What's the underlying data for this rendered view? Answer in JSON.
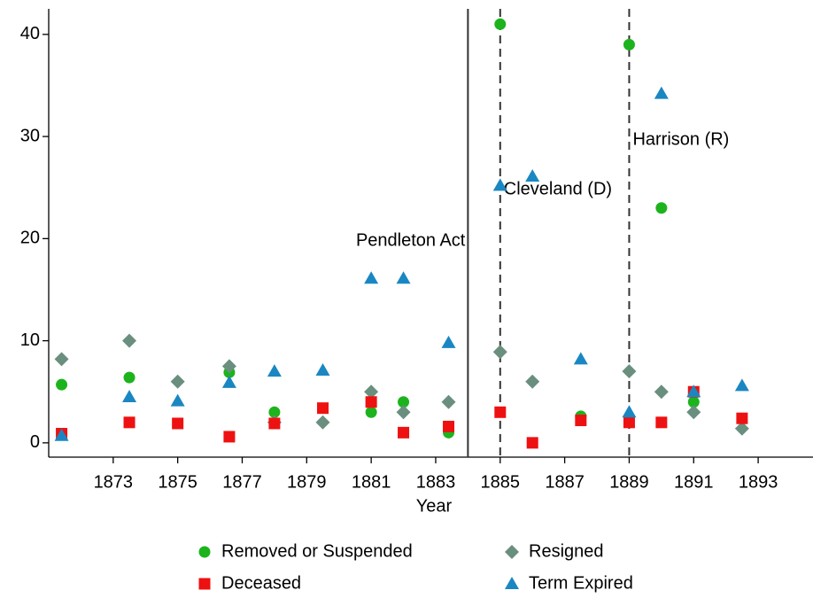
{
  "chart_data": {
    "type": "scatter",
    "x_label": "Year",
    "xlim": [
      1871,
      1894.7
    ],
    "ylim": [
      -1.4,
      42.5
    ],
    "xticks": [
      1873,
      1875,
      1877,
      1879,
      1881,
      1883,
      1885,
      1887,
      1889,
      1891,
      1893
    ],
    "yticks": [
      0,
      10,
      20,
      30,
      40
    ],
    "series": [
      {
        "name": "Removed or Suspended",
        "color": "#1db31d",
        "marker": "circle",
        "x": [
          1871.4,
          1873.5,
          1876.6,
          1878,
          1881,
          1882,
          1883.4,
          1885,
          1887.5,
          1889,
          1890,
          1891
        ],
        "values": [
          5.7,
          6.4,
          6.9,
          3,
          3,
          4,
          1,
          41,
          2.6,
          39,
          23,
          4
        ]
      },
      {
        "name": "Resigned",
        "color": "#6a8f7f",
        "marker": "diamond",
        "x": [
          1871.4,
          1873.5,
          1875,
          1876.6,
          1878,
          1879.5,
          1881,
          1882,
          1883.4,
          1885,
          1886,
          1889,
          1890,
          1891,
          1892.5
        ],
        "values": [
          8.2,
          10,
          6,
          7.5,
          2,
          2,
          5,
          3,
          4,
          8.9,
          6,
          7,
          5,
          3,
          1.4
        ]
      },
      {
        "name": "Deceased",
        "color": "#ee1111",
        "marker": "square",
        "x": [
          1871.4,
          1873.5,
          1875,
          1876.6,
          1878,
          1879.5,
          1881,
          1882,
          1883.4,
          1885,
          1886,
          1887.5,
          1889,
          1890,
          1891,
          1892.5
        ],
        "values": [
          0.9,
          2,
          1.9,
          0.6,
          1.9,
          3.4,
          4,
          1,
          1.6,
          3,
          0,
          2.2,
          2,
          2,
          5,
          2.4
        ]
      },
      {
        "name": "Term Expired",
        "color": "#1a87c2",
        "marker": "triangle",
        "x": [
          1871.4,
          1873.5,
          1875,
          1876.6,
          1878,
          1879.5,
          1881,
          1882,
          1883.4,
          1885,
          1886,
          1887.5,
          1889,
          1890,
          1891,
          1892.5
        ],
        "values": [
          0.7,
          4.5,
          4.1,
          5.9,
          7,
          7.1,
          16.1,
          16.1,
          9.8,
          25.2,
          26.1,
          8.2,
          3,
          34.2,
          5,
          5.6
        ]
      }
    ],
    "vlines": [
      {
        "x": 1884,
        "style": "solid",
        "label": "Pendleton Act"
      },
      {
        "x": 1885,
        "style": "dashed",
        "label": "Cleveland (D)"
      },
      {
        "x": 1889,
        "style": "dashed",
        "label": "Harrison (R)"
      }
    ]
  }
}
